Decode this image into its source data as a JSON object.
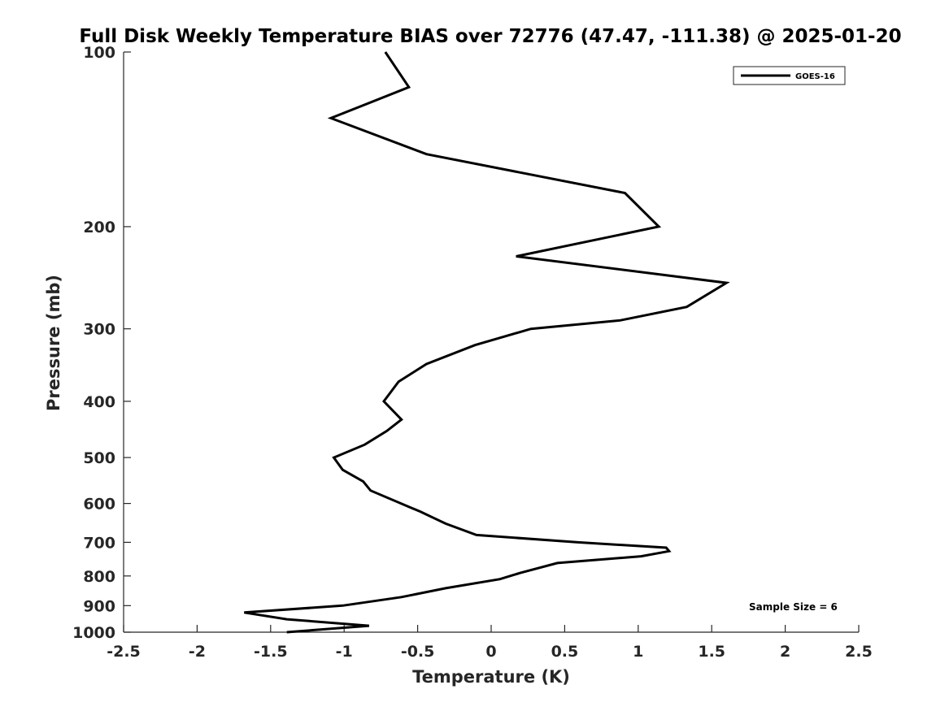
{
  "chart_data": {
    "type": "line",
    "title": "Full Disk Weekly Temperature BIAS over 72776 (47.47, -111.38) @ 2025-01-20",
    "xlabel": "Temperature (K)",
    "ylabel": "Pressure (mb)",
    "xlim": [
      -2.5,
      2.5
    ],
    "ylim": [
      100,
      1000
    ],
    "yscale": "log",
    "y_reversed": true,
    "grid": false,
    "xticks": [
      -2.5,
      -2,
      -1.5,
      -1,
      -0.5,
      0,
      0.5,
      1,
      1.5,
      2,
      2.5
    ],
    "xtick_labels": [
      "-2.5",
      "-2",
      "-1.5",
      "-1",
      "-0.5",
      "0",
      "0.5",
      "1",
      "1.5",
      "2",
      "2.5"
    ],
    "yticks": [
      100,
      200,
      300,
      400,
      500,
      600,
      700,
      800,
      900,
      1000
    ],
    "ytick_labels": [
      "100",
      "200",
      "300",
      "400",
      "500",
      "600",
      "700",
      "800",
      "900",
      "1000"
    ],
    "legend_position": "top-right",
    "series": [
      {
        "name": "GOES-16",
        "color": "#000000",
        "x": [
          -0.72,
          -0.56,
          -1.09,
          -0.44,
          0.91,
          1.14,
          0.17,
          1.6,
          1.33,
          0.88,
          0.27,
          -0.11,
          -0.44,
          -0.63,
          -0.73,
          -0.61,
          -0.71,
          -0.86,
          -1.07,
          -1.01,
          -0.87,
          -0.82,
          -0.48,
          -0.31,
          -0.1,
          0.59,
          1.19,
          1.21,
          1.02,
          0.45,
          0.2,
          0.06,
          -0.31,
          -0.61,
          -1.01,
          -1.68,
          -1.39,
          -0.83,
          -1.39
        ],
        "y": [
          100,
          115,
          130,
          150,
          175,
          200,
          225,
          250,
          275,
          290,
          300,
          320,
          345,
          370,
          400,
          430,
          450,
          475,
          500,
          525,
          550,
          570,
          620,
          650,
          680,
          700,
          715,
          725,
          740,
          760,
          790,
          810,
          840,
          870,
          900,
          925,
          950,
          975,
          1000
        ]
      }
    ],
    "annotations": [
      "Sample Size = 6"
    ]
  }
}
